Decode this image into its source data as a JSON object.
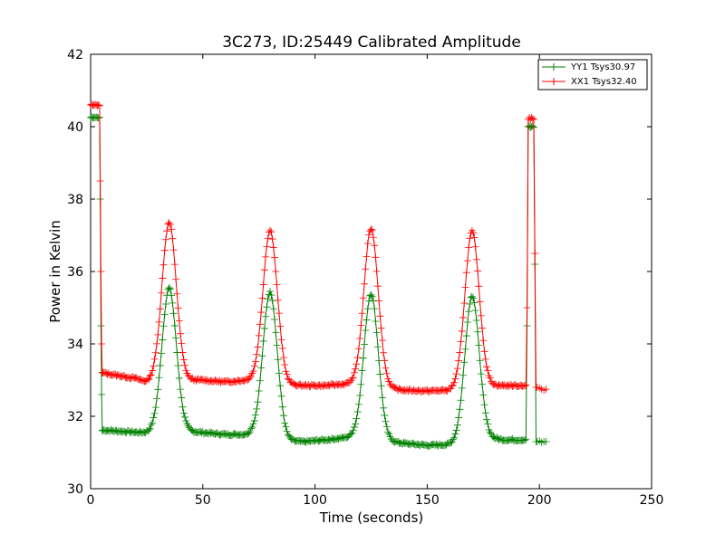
{
  "chart_data": {
    "type": "line",
    "title": "3C273, ID:25449 Calibrated Amplitude",
    "xlabel": "Time (seconds)",
    "ylabel": "Power in Kelvin",
    "xlim": [
      0,
      250
    ],
    "ylim": [
      30,
      42
    ],
    "xticks": [
      0,
      50,
      100,
      150,
      200,
      250
    ],
    "yticks": [
      30,
      32,
      34,
      36,
      38,
      40,
      42
    ],
    "grid": false,
    "legend_position": "top-right",
    "marker": "+",
    "series": [
      {
        "name": "YY1 Tsys30.97",
        "color": "#008000",
        "baseline_segments": [
          {
            "x": [
              0.0,
              0.5,
              1.0,
              1.5,
              2.0,
              2.5,
              3.0,
              3.5,
              4.0
            ],
            "y": [
              40.25,
              40.27,
              40.24,
              40.26,
              40.25,
              40.27,
              40.25,
              40.24,
              40.26
            ]
          },
          {
            "x": [
              4.3,
              4.6,
              4.9,
              5.2
            ],
            "y": [
              38.0,
              34.5,
              32.6,
              31.6
            ]
          },
          {
            "x": [
              5.5,
              10,
              15,
              20,
              25,
              28,
              42,
              50,
              60,
              70,
              72,
              87,
              95,
              105,
              115,
              117,
              132,
              140,
              150,
              160,
              162,
              177,
              185,
              194
            ],
            "y": [
              31.62,
              31.6,
              31.58,
              31.56,
              31.55,
              31.58,
              31.6,
              31.55,
              31.5,
              31.5,
              31.55,
              31.32,
              31.3,
              31.35,
              31.42,
              31.45,
              31.32,
              31.25,
              31.2,
              31.22,
              31.25,
              31.4,
              31.35,
              31.35
            ]
          },
          {
            "x": [
              194.5,
              195.0,
              195.5,
              196.0,
              196.5,
              197.0,
              197.5,
              198.0,
              198.5
            ],
            "y": [
              34.5,
              40.0,
              40.02,
              39.98,
              40.0,
              40.02,
              39.98,
              36.2,
              31.3
            ]
          },
          {
            "x": [
              199,
              200,
              201,
              202,
              203
            ],
            "y": [
              31.3,
              31.32,
              31.28,
              31.3,
              31.3
            ]
          }
        ],
        "peaks": [
          {
            "center": 35,
            "height": 35.5,
            "base": 31.55,
            "width": 3.2
          },
          {
            "center": 80,
            "height": 35.45,
            "base": 31.45,
            "width": 3.2
          },
          {
            "center": 125,
            "height": 35.4,
            "base": 31.4,
            "width": 3.2
          },
          {
            "center": 170,
            "height": 35.3,
            "base": 31.3,
            "width": 3.2
          }
        ]
      },
      {
        "name": "XX1 Tsys32.40",
        "color": "#ff0000",
        "baseline_segments": [
          {
            "x": [
              0.0,
              0.5,
              1.0,
              1.5,
              2.0,
              2.5,
              3.0,
              3.5,
              4.0
            ],
            "y": [
              40.6,
              40.62,
              40.58,
              40.6,
              40.62,
              40.6,
              40.58,
              40.6,
              40.58
            ]
          },
          {
            "x": [
              4.3,
              4.6,
              4.9,
              5.2
            ],
            "y": [
              38.5,
              36.0,
              34.0,
              33.2
            ]
          },
          {
            "x": [
              5.5,
              10,
              15,
              20,
              25,
              28,
              42,
              50,
              60,
              70,
              72,
              87,
              95,
              105,
              115,
              117,
              132,
              140,
              150,
              160,
              162,
              177,
              185,
              194
            ],
            "y": [
              33.2,
              33.15,
              33.1,
              33.05,
              32.95,
              33.0,
              33.0,
              33.0,
              32.95,
              33.0,
              33.0,
              32.88,
              32.85,
              32.85,
              32.9,
              32.9,
              32.78,
              32.72,
              32.7,
              32.72,
              32.75,
              32.85,
              32.85,
              32.85
            ]
          },
          {
            "x": [
              194.5,
              195.0,
              195.5,
              196.0,
              196.5,
              197.0,
              197.5,
              198.0,
              198.5
            ],
            "y": [
              35.0,
              40.2,
              40.25,
              40.2,
              40.25,
              40.22,
              40.2,
              36.5,
              32.8
            ]
          },
          {
            "x": [
              199,
              200,
              201,
              202,
              203
            ],
            "y": [
              32.8,
              32.78,
              32.75,
              32.72,
              32.75
            ]
          }
        ],
        "peaks": [
          {
            "center": 35,
            "height": 37.35,
            "base": 33.0,
            "width": 3.2
          },
          {
            "center": 80,
            "height": 37.15,
            "base": 32.95,
            "width": 3.2
          },
          {
            "center": 125,
            "height": 37.2,
            "base": 32.85,
            "width": 3.2
          },
          {
            "center": 170,
            "height": 37.05,
            "base": 32.75,
            "width": 3.2
          }
        ]
      }
    ]
  }
}
